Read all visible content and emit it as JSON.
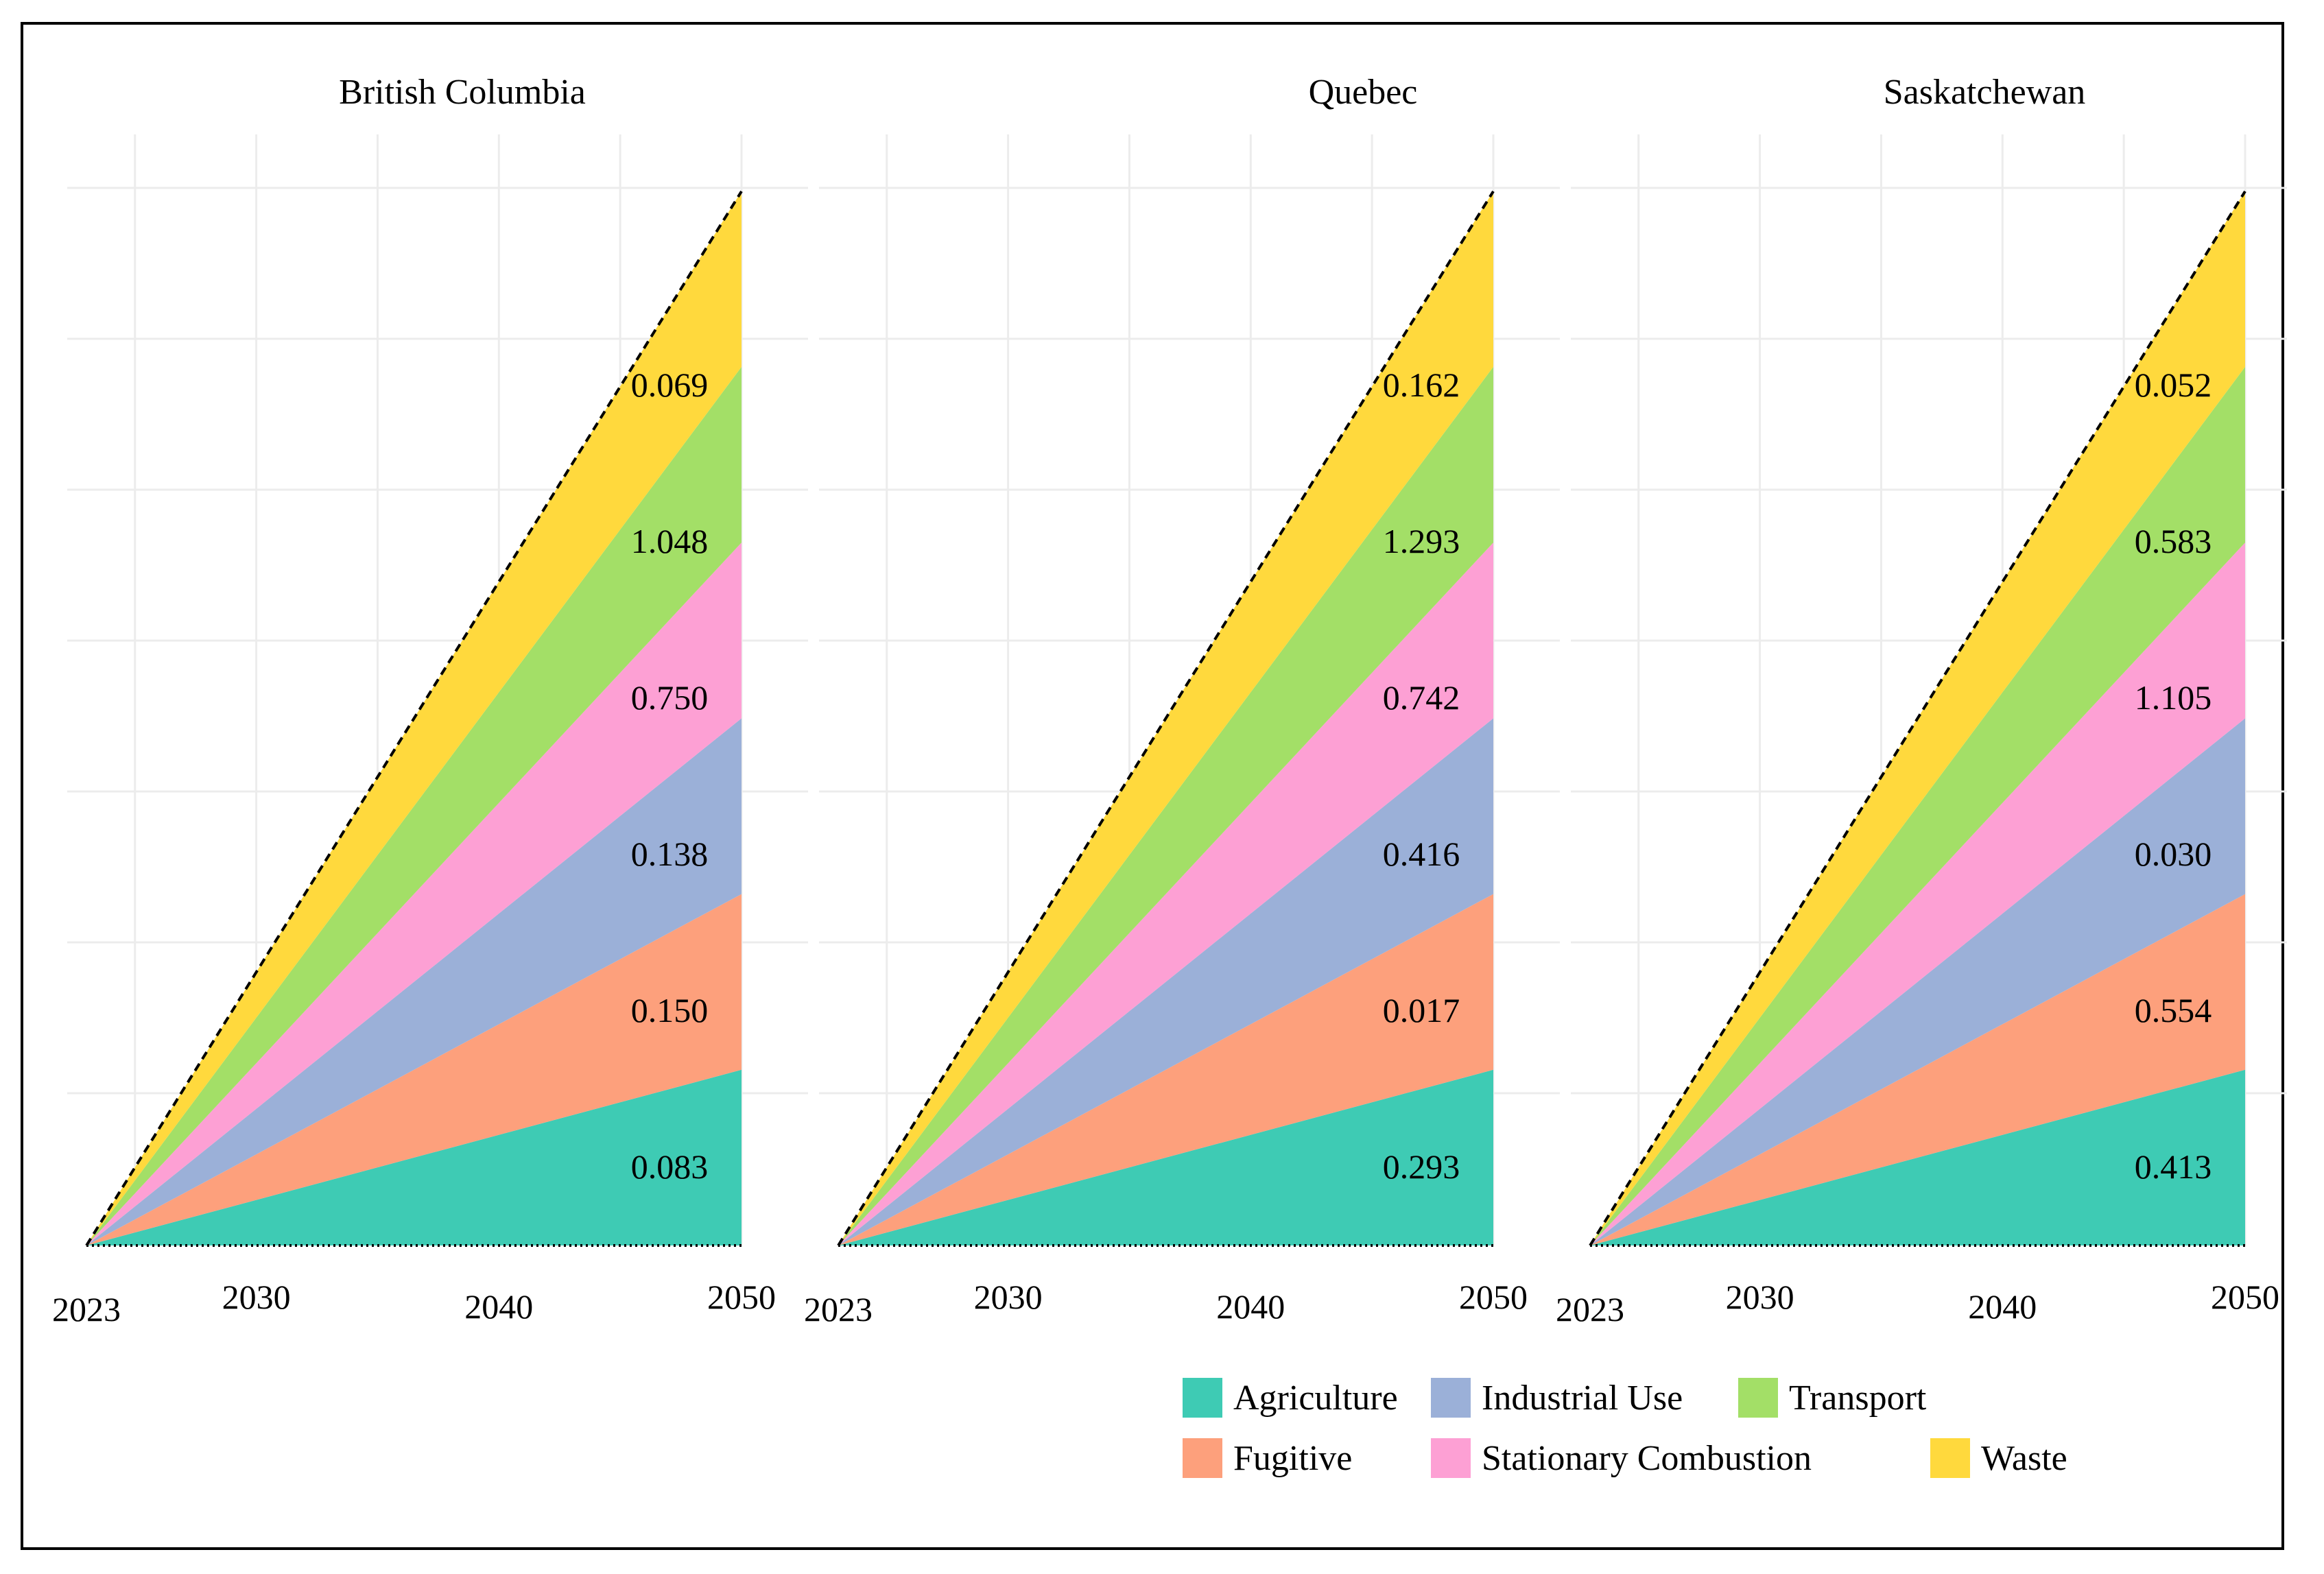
{
  "chart_data": {
    "type": "area",
    "stacked": true,
    "x_start": 2023,
    "x_end": 2050,
    "xticks": [
      "2023",
      "2030",
      "2040",
      "2050"
    ],
    "grid": true,
    "legend_position": "bottom-right",
    "sectors": [
      {
        "name": "Agriculture",
        "color": "#3ecbb4",
        "band_end_share": 0.1667
      },
      {
        "name": "Fugitive",
        "color": "#fda07c",
        "band_end_share": 0.1667
      },
      {
        "name": "Industrial Use",
        "color": "#9bb0d8",
        "band_end_share": 0.1667
      },
      {
        "name": "Stationary Combustion",
        "color": "#fda0d4",
        "band_end_share": 0.1667
      },
      {
        "name": "Transport",
        "color": "#a3df67",
        "band_end_share": 0.1667
      },
      {
        "name": "Waste",
        "color": "#ffd93d",
        "band_end_share": 0.1667
      }
    ],
    "panels": [
      {
        "title": "British Columbia",
        "labels": {
          "Agriculture": "0.083",
          "Fugitive": "0.150",
          "Industrial Use": "0.138",
          "Stationary Combustion": "0.750",
          "Transport": "1.048",
          "Waste": "0.069"
        }
      },
      {
        "title": "Quebec",
        "labels": {
          "Agriculture": "0.293",
          "Fugitive": "0.017",
          "Industrial Use": "0.416",
          "Stationary Combustion": "0.742",
          "Transport": "1.293",
          "Waste": "0.162"
        }
      },
      {
        "title": "Saskatchewan",
        "labels": {
          "Agriculture": "0.413",
          "Fugitive": "0.554",
          "Industrial Use": "0.030",
          "Stationary Combustion": "1.105",
          "Transport": "0.583",
          "Waste": "0.052"
        }
      }
    ],
    "legend": [
      [
        "Agriculture",
        "Industrial Use",
        "Transport"
      ],
      [
        "Fugitive",
        "Stationary Combustion",
        "Waste"
      ]
    ]
  }
}
